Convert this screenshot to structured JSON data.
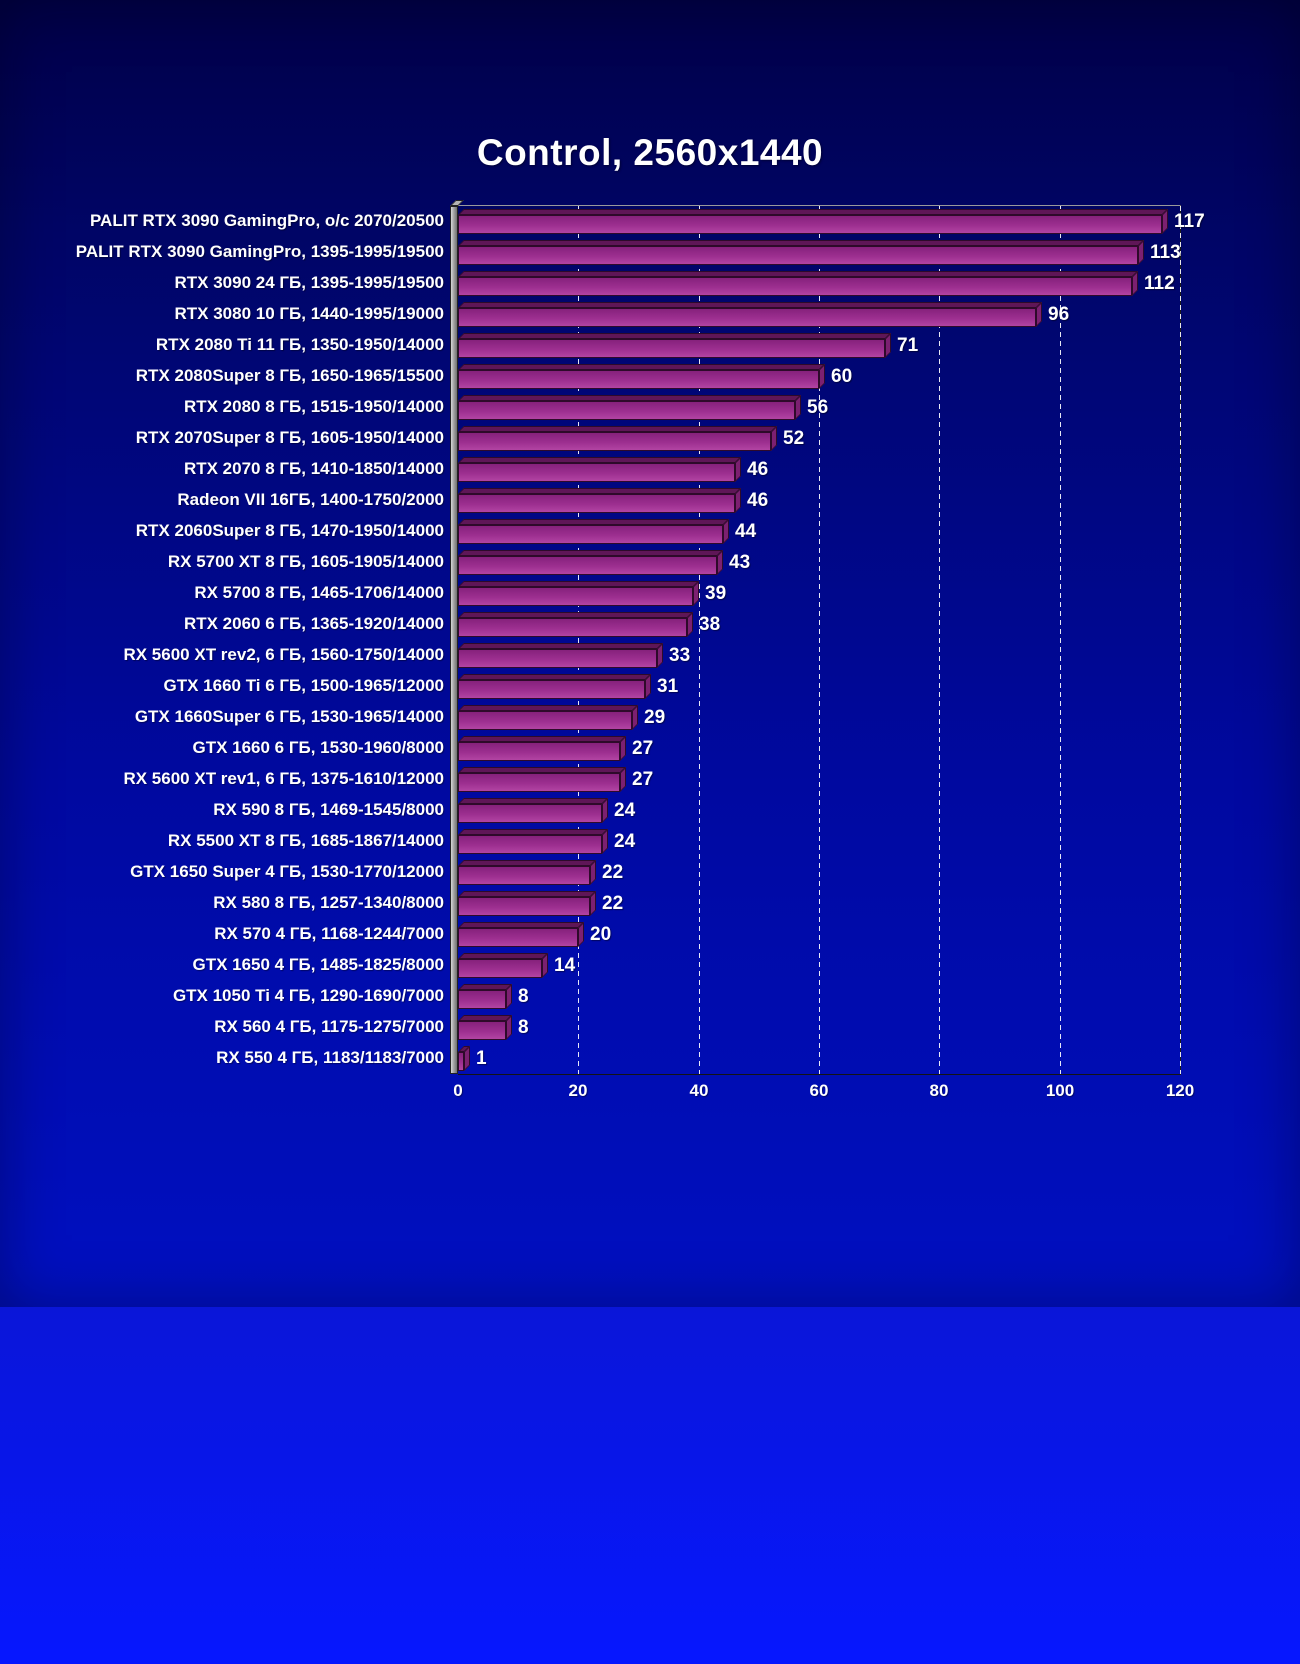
{
  "chart_data": {
    "type": "bar",
    "orientation": "horizontal",
    "title": "Control, 2560x1440",
    "categories": [
      "PALIT RTX 3090 GamingPro, o/c 2070/20500",
      "PALIT RTX 3090 GamingPro, 1395-1995/19500",
      "RTX 3090 24 ГБ, 1395-1995/19500",
      "RTX 3080 10 ГБ, 1440-1995/19000",
      "RTX 2080 Ti 11 ГБ, 1350-1950/14000",
      "RTX 2080Super 8 ГБ, 1650-1965/15500",
      "RTX 2080 8 ГБ, 1515-1950/14000",
      "RTX 2070Super 8 ГБ, 1605-1950/14000",
      "RTX 2070 8 ГБ, 1410-1850/14000",
      "Radeon VII 16ГБ, 1400-1750/2000",
      "RTX 2060Super 8 ГБ, 1470-1950/14000",
      "RX 5700 XT 8 ГБ, 1605-1905/14000",
      "RX 5700 8 ГБ, 1465-1706/14000",
      "RTX 2060 6 ГБ, 1365-1920/14000",
      "RX 5600 XT rev2, 6 ГБ, 1560-1750/14000",
      "GTX 1660 Ti 6 ГБ, 1500-1965/12000",
      "GTX 1660Super 6 ГБ, 1530-1965/14000",
      "GTX 1660 6 ГБ, 1530-1960/8000",
      "RX 5600 XT rev1, 6 ГБ, 1375-1610/12000",
      "RX 590 8 ГБ, 1469-1545/8000",
      "RX 5500 XT 8 ГБ, 1685-1867/14000",
      "GTX 1650 Super 4 ГБ, 1530-1770/12000",
      "RX 580 8 ГБ, 1257-1340/8000",
      "RX 570 4 ГБ, 1168-1244/7000",
      "GTX 1650 4 ГБ, 1485-1825/8000",
      "GTX 1050 Ti 4 ГБ, 1290-1690/7000",
      "RX 560 4 ГБ, 1175-1275/7000",
      "RX 550 4 ГБ, 1183/1183/7000"
    ],
    "values": [
      117,
      113,
      112,
      96,
      71,
      60,
      56,
      52,
      46,
      46,
      44,
      43,
      39,
      38,
      33,
      31,
      29,
      27,
      27,
      24,
      24,
      22,
      22,
      20,
      14,
      8,
      8,
      1
    ],
    "xlabel": "",
    "ylabel": "",
    "xlim": [
      0,
      120
    ],
    "x_ticks": [
      0,
      20,
      40,
      60,
      80,
      100,
      120
    ],
    "grid": "vertical-dashed-white",
    "legend": "none",
    "style": {
      "bar_color": "#9d2f90",
      "bar_outline": "#2e0a2a",
      "grid_color": "#ffffff",
      "text_color": "#ffffff",
      "background_top": "#000048",
      "background_bottom": "#0010c2"
    }
  }
}
